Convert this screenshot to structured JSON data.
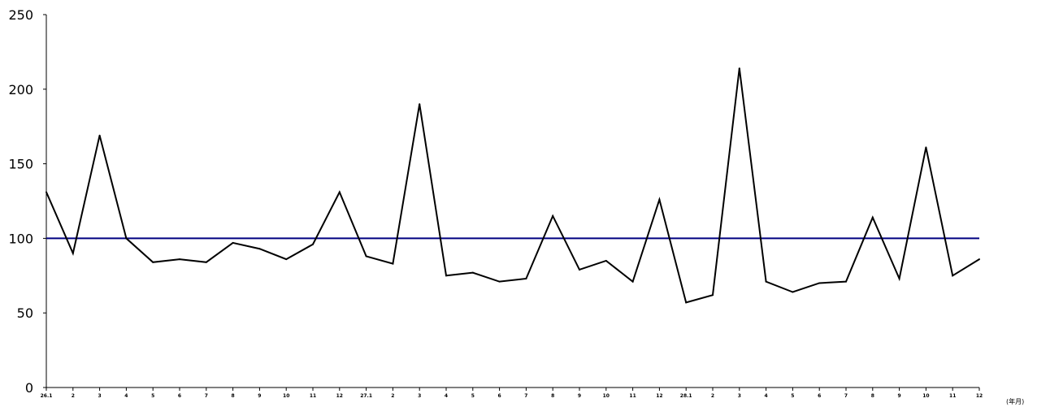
{
  "chart_data": {
    "type": "line",
    "categories": [
      "26.1",
      "2",
      "3",
      "4",
      "5",
      "6",
      "7",
      "8",
      "9",
      "10",
      "11",
      "12",
      "27.1",
      "2",
      "3",
      "4",
      "5",
      "6",
      "7",
      "8",
      "9",
      "10",
      "11",
      "12",
      "28.1",
      "2",
      "3",
      "4",
      "5",
      "6",
      "7",
      "8",
      "9",
      "10",
      "11",
      "12"
    ],
    "series": [
      {
        "values": [
          131,
          90,
          169,
          100,
          84,
          86,
          84,
          97,
          93,
          86,
          96,
          131,
          88,
          83,
          190,
          75,
          77,
          71,
          73,
          115,
          79,
          85,
          71,
          126,
          57,
          62,
          214,
          71,
          64,
          70,
          71,
          114,
          73,
          161,
          75,
          86
        ],
        "color": "#000000"
      }
    ],
    "reference_line": {
      "value": 100,
      "color": "#000080"
    },
    "xlabel": "",
    "ylabel": "",
    "x_unit": "(年月)",
    "ylim": [
      0,
      250
    ],
    "yticks": [
      0,
      50,
      100,
      150,
      200,
      250
    ],
    "grid": false,
    "legend": "none"
  }
}
